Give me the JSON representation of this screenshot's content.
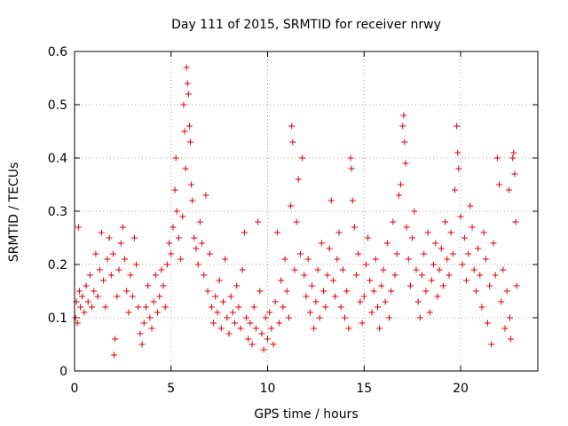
{
  "chart_data": {
    "type": "scatter",
    "title": "Day 111 of 2015, SRMTID for receiver nrwy",
    "xlabel": "GPS time / hours",
    "ylabel": "SRMTID / TECUs",
    "xlim": [
      0,
      24
    ],
    "ylim": [
      0,
      0.6
    ],
    "x_ticks": [
      0,
      5,
      10,
      15,
      20
    ],
    "x_tick_labels": [
      "0",
      "5",
      "10",
      "15",
      "20"
    ],
    "y_ticks": [
      0,
      0.1,
      0.2,
      0.3,
      0.4,
      0.5,
      0.6
    ],
    "y_tick_labels": [
      "0",
      "0.1",
      "0.2",
      "0.3",
      "0.4",
      "0.5",
      "0.6"
    ],
    "grid": true,
    "marker": "+",
    "color": "#e00000",
    "series": [
      {
        "name": "SRMTID",
        "points": [
          [
            0.05,
            0.1
          ],
          [
            0.1,
            0.13
          ],
          [
            0.15,
            0.09
          ],
          [
            0.2,
            0.27
          ],
          [
            0.25,
            0.15
          ],
          [
            0.3,
            0.12
          ],
          [
            0.4,
            0.14
          ],
          [
            0.5,
            0.11
          ],
          [
            0.6,
            0.16
          ],
          [
            0.7,
            0.13
          ],
          [
            0.8,
            0.18
          ],
          [
            0.9,
            0.12
          ],
          [
            1.0,
            0.15
          ],
          [
            1.1,
            0.22
          ],
          [
            1.2,
            0.14
          ],
          [
            1.3,
            0.19
          ],
          [
            1.4,
            0.26
          ],
          [
            1.5,
            0.17
          ],
          [
            1.6,
            0.12
          ],
          [
            1.7,
            0.21
          ],
          [
            1.8,
            0.25
          ],
          [
            1.9,
            0.18
          ],
          [
            2.0,
            0.22
          ],
          [
            2.05,
            0.03
          ],
          [
            2.1,
            0.06
          ],
          [
            2.2,
            0.14
          ],
          [
            2.3,
            0.19
          ],
          [
            2.4,
            0.24
          ],
          [
            2.5,
            0.27
          ],
          [
            2.6,
            0.21
          ],
          [
            2.7,
            0.15
          ],
          [
            2.8,
            0.11
          ],
          [
            2.9,
            0.18
          ],
          [
            3.0,
            0.14
          ],
          [
            3.1,
            0.25
          ],
          [
            3.2,
            0.2
          ],
          [
            3.3,
            0.12
          ],
          [
            3.4,
            0.07
          ],
          [
            3.5,
            0.05
          ],
          [
            3.6,
            0.09
          ],
          [
            3.7,
            0.12
          ],
          [
            3.8,
            0.16
          ],
          [
            3.9,
            0.1
          ],
          [
            4.0,
            0.08
          ],
          [
            4.1,
            0.13
          ],
          [
            4.2,
            0.18
          ],
          [
            4.3,
            0.11
          ],
          [
            4.4,
            0.14
          ],
          [
            4.5,
            0.19
          ],
          [
            4.6,
            0.16
          ],
          [
            4.7,
            0.12
          ],
          [
            4.8,
            0.2
          ],
          [
            4.9,
            0.24
          ],
          [
            5.0,
            0.22
          ],
          [
            5.1,
            0.27
          ],
          [
            5.2,
            0.34
          ],
          [
            5.25,
            0.4
          ],
          [
            5.3,
            0.3
          ],
          [
            5.4,
            0.25
          ],
          [
            5.5,
            0.21
          ],
          [
            5.6,
            0.29
          ],
          [
            5.65,
            0.5
          ],
          [
            5.7,
            0.45
          ],
          [
            5.75,
            0.38
          ],
          [
            5.8,
            0.57
          ],
          [
            5.85,
            0.54
          ],
          [
            5.9,
            0.52
          ],
          [
            5.95,
            0.46
          ],
          [
            6.0,
            0.43
          ],
          [
            6.05,
            0.35
          ],
          [
            6.1,
            0.32
          ],
          [
            6.2,
            0.25
          ],
          [
            6.3,
            0.23
          ],
          [
            6.4,
            0.2
          ],
          [
            6.5,
            0.28
          ],
          [
            6.6,
            0.24
          ],
          [
            6.7,
            0.18
          ],
          [
            6.8,
            0.33
          ],
          [
            6.9,
            0.15
          ],
          [
            7.0,
            0.22
          ],
          [
            7.1,
            0.12
          ],
          [
            7.2,
            0.09
          ],
          [
            7.3,
            0.14
          ],
          [
            7.4,
            0.11
          ],
          [
            7.5,
            0.17
          ],
          [
            7.6,
            0.08
          ],
          [
            7.7,
            0.13
          ],
          [
            7.8,
            0.21
          ],
          [
            7.9,
            0.1
          ],
          [
            8.0,
            0.07
          ],
          [
            8.1,
            0.14
          ],
          [
            8.2,
            0.11
          ],
          [
            8.3,
            0.09
          ],
          [
            8.4,
            0.16
          ],
          [
            8.5,
            0.12
          ],
          [
            8.6,
            0.08
          ],
          [
            8.7,
            0.19
          ],
          [
            8.8,
            0.26
          ],
          [
            8.9,
            0.1
          ],
          [
            9.0,
            0.06
          ],
          [
            9.1,
            0.09
          ],
          [
            9.2,
            0.05
          ],
          [
            9.3,
            0.12
          ],
          [
            9.4,
            0.08
          ],
          [
            9.5,
            0.28
          ],
          [
            9.6,
            0.15
          ],
          [
            9.7,
            0.07
          ],
          [
            9.8,
            0.04
          ],
          [
            9.9,
            0.1
          ],
          [
            10.0,
            0.06
          ],
          [
            10.1,
            0.11
          ],
          [
            10.2,
            0.08
          ],
          [
            10.3,
            0.05
          ],
          [
            10.4,
            0.13
          ],
          [
            10.5,
            0.26
          ],
          [
            10.6,
            0.09
          ],
          [
            10.7,
            0.17
          ],
          [
            10.8,
            0.12
          ],
          [
            10.9,
            0.21
          ],
          [
            11.0,
            0.15
          ],
          [
            11.1,
            0.1
          ],
          [
            11.2,
            0.31
          ],
          [
            11.25,
            0.46
          ],
          [
            11.3,
            0.43
          ],
          [
            11.4,
            0.19
          ],
          [
            11.5,
            0.28
          ],
          [
            11.6,
            0.36
          ],
          [
            11.7,
            0.22
          ],
          [
            11.8,
            0.4
          ],
          [
            11.9,
            0.18
          ],
          [
            12.0,
            0.14
          ],
          [
            12.1,
            0.21
          ],
          [
            12.2,
            0.11
          ],
          [
            12.3,
            0.16
          ],
          [
            12.4,
            0.08
          ],
          [
            12.5,
            0.13
          ],
          [
            12.6,
            0.19
          ],
          [
            12.7,
            0.1
          ],
          [
            12.8,
            0.24
          ],
          [
            12.9,
            0.15
          ],
          [
            13.0,
            0.12
          ],
          [
            13.1,
            0.18
          ],
          [
            13.2,
            0.23
          ],
          [
            13.3,
            0.32
          ],
          [
            13.4,
            0.17
          ],
          [
            13.5,
            0.14
          ],
          [
            13.6,
            0.21
          ],
          [
            13.7,
            0.26
          ],
          [
            13.8,
            0.12
          ],
          [
            13.9,
            0.19
          ],
          [
            14.0,
            0.1
          ],
          [
            14.1,
            0.15
          ],
          [
            14.2,
            0.08
          ],
          [
            14.3,
            0.4
          ],
          [
            14.35,
            0.38
          ],
          [
            14.4,
            0.32
          ],
          [
            14.5,
            0.27
          ],
          [
            14.6,
            0.18
          ],
          [
            14.7,
            0.22
          ],
          [
            14.8,
            0.13
          ],
          [
            14.9,
            0.09
          ],
          [
            15.0,
            0.14
          ],
          [
            15.1,
            0.2
          ],
          [
            15.2,
            0.25
          ],
          [
            15.3,
            0.17
          ],
          [
            15.4,
            0.11
          ],
          [
            15.5,
            0.15
          ],
          [
            15.6,
            0.21
          ],
          [
            15.7,
            0.12
          ],
          [
            15.8,
            0.08
          ],
          [
            15.9,
            0.16
          ],
          [
            16.0,
            0.19
          ],
          [
            16.1,
            0.13
          ],
          [
            16.2,
            0.24
          ],
          [
            16.3,
            0.1
          ],
          [
            16.4,
            0.15
          ],
          [
            16.5,
            0.28
          ],
          [
            16.6,
            0.18
          ],
          [
            16.7,
            0.22
          ],
          [
            16.8,
            0.33
          ],
          [
            16.9,
            0.35
          ],
          [
            17.0,
            0.46
          ],
          [
            17.05,
            0.48
          ],
          [
            17.1,
            0.43
          ],
          [
            17.15,
            0.39
          ],
          [
            17.2,
            0.27
          ],
          [
            17.3,
            0.21
          ],
          [
            17.4,
            0.16
          ],
          [
            17.5,
            0.25
          ],
          [
            17.6,
            0.3
          ],
          [
            17.7,
            0.19
          ],
          [
            17.8,
            0.13
          ],
          [
            17.9,
            0.1
          ],
          [
            18.0,
            0.18
          ],
          [
            18.1,
            0.22
          ],
          [
            18.2,
            0.15
          ],
          [
            18.3,
            0.26
          ],
          [
            18.4,
            0.11
          ],
          [
            18.5,
            0.17
          ],
          [
            18.6,
            0.2
          ],
          [
            18.7,
            0.24
          ],
          [
            18.8,
            0.14
          ],
          [
            18.9,
            0.19
          ],
          [
            19.0,
            0.23
          ],
          [
            19.1,
            0.16
          ],
          [
            19.2,
            0.28
          ],
          [
            19.3,
            0.21
          ],
          [
            19.4,
            0.18
          ],
          [
            19.5,
            0.26
          ],
          [
            19.6,
            0.22
          ],
          [
            19.7,
            0.34
          ],
          [
            19.8,
            0.46
          ],
          [
            19.85,
            0.41
          ],
          [
            19.9,
            0.38
          ],
          [
            20.0,
            0.29
          ],
          [
            20.1,
            0.2
          ],
          [
            20.2,
            0.25
          ],
          [
            20.3,
            0.17
          ],
          [
            20.4,
            0.22
          ],
          [
            20.5,
            0.31
          ],
          [
            20.6,
            0.27
          ],
          [
            20.7,
            0.19
          ],
          [
            20.8,
            0.15
          ],
          [
            20.9,
            0.23
          ],
          [
            21.0,
            0.18
          ],
          [
            21.1,
            0.12
          ],
          [
            21.2,
            0.26
          ],
          [
            21.3,
            0.21
          ],
          [
            21.4,
            0.09
          ],
          [
            21.5,
            0.16
          ],
          [
            21.6,
            0.05
          ],
          [
            21.7,
            0.24
          ],
          [
            21.8,
            0.18
          ],
          [
            21.9,
            0.4
          ],
          [
            22.0,
            0.35
          ],
          [
            22.1,
            0.13
          ],
          [
            22.2,
            0.19
          ],
          [
            22.3,
            0.08
          ],
          [
            22.4,
            0.15
          ],
          [
            22.5,
            0.34
          ],
          [
            22.55,
            0.1
          ],
          [
            22.6,
            0.06
          ],
          [
            22.7,
            0.4
          ],
          [
            22.75,
            0.41
          ],
          [
            22.8,
            0.37
          ],
          [
            22.85,
            0.28
          ],
          [
            22.9,
            0.16
          ]
        ]
      }
    ]
  }
}
